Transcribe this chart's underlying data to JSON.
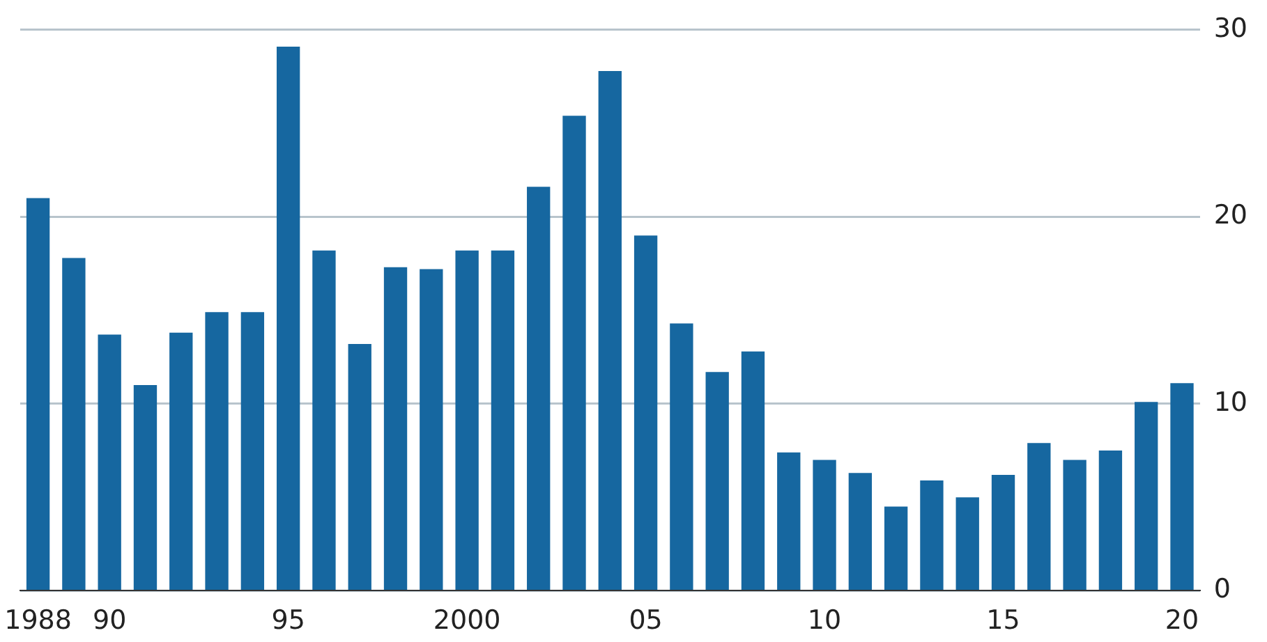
{
  "chart_data": {
    "type": "bar",
    "categories": [
      "1988",
      null,
      "90",
      null,
      null,
      null,
      null,
      "95",
      null,
      null,
      null,
      null,
      "2000",
      null,
      null,
      null,
      null,
      "05",
      null,
      null,
      null,
      null,
      "10",
      null,
      null,
      null,
      null,
      "15",
      null,
      null,
      null,
      null,
      "20"
    ],
    "values": [
      21.0,
      17.8,
      13.7,
      11.0,
      13.8,
      14.9,
      14.9,
      29.1,
      18.2,
      13.2,
      17.3,
      17.2,
      18.2,
      18.2,
      21.6,
      25.4,
      27.8,
      19.0,
      14.3,
      11.7,
      12.8,
      7.4,
      7.0,
      6.3,
      4.5,
      5.9,
      5.0,
      6.2,
      7.9,
      7.0,
      7.5,
      10.1,
      11.1
    ],
    "color": "#1667a0",
    "ylim": [
      0,
      30
    ],
    "yticks": [
      0,
      10,
      20,
      30
    ],
    "grid": "y",
    "legend": false
  }
}
